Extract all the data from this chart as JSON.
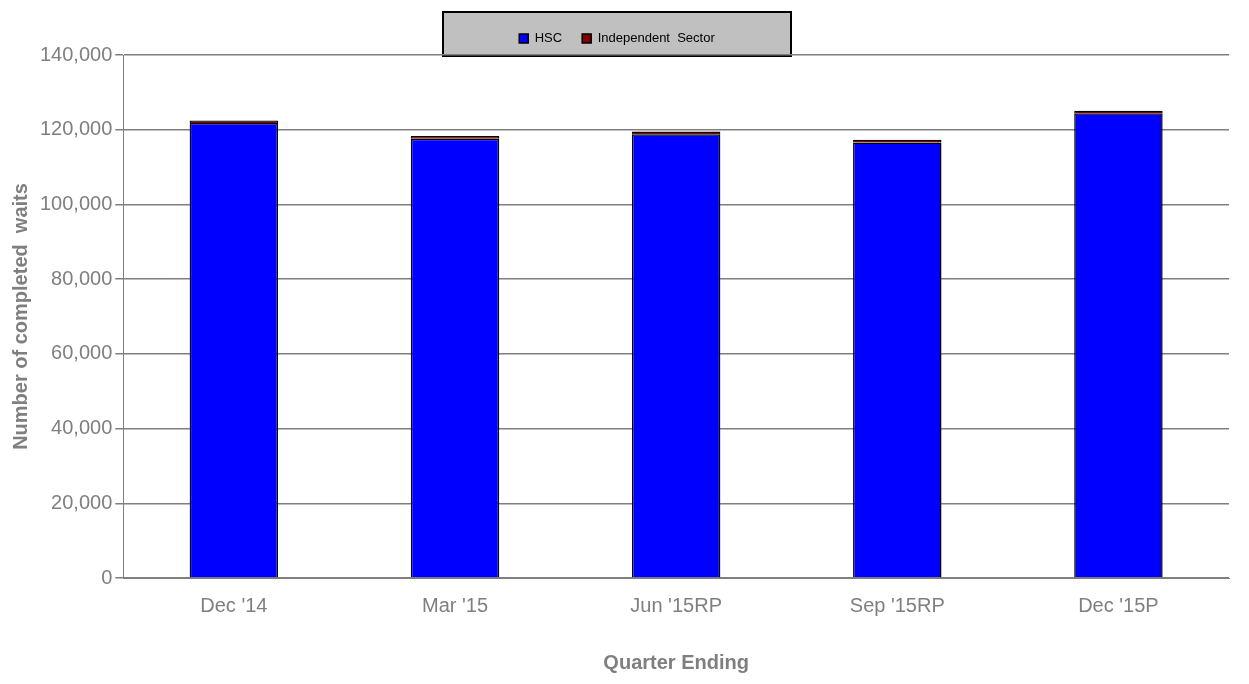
{
  "chart_data": {
    "type": "bar",
    "xlabel": "Quarter Ending",
    "ylabel": "Number of completed  waits",
    "categories": [
      "Dec '14",
      "Mar '15",
      "Jun '15RP",
      "Sep '15RP",
      "Dec '15P"
    ],
    "stacked": true,
    "series": [
      {
        "name": "HSC",
        "color": "#0000ff",
        "values": [
          121800,
          117600,
          118800,
          116600,
          124400
        ]
      },
      {
        "name": "Independent  Sector",
        "color": "#800000",
        "values": [
          700,
          700,
          700,
          700,
          700
        ]
      }
    ],
    "ylim": [
      0,
      140000
    ],
    "yticks": [
      0,
      {
        "value": 20000,
        "label": "20,000"
      },
      {
        "value": 40000,
        "label": "40,000"
      },
      {
        "value": 60000,
        "label": "60,000"
      },
      {
        "value": 80000,
        "label": "80,000"
      },
      {
        "value": 100000,
        "label": "100,000"
      },
      {
        "value": 120000,
        "label": "120,000"
      },
      {
        "value": 140000,
        "label": "140,000"
      }
    ],
    "grid": "y",
    "legend": "top"
  }
}
